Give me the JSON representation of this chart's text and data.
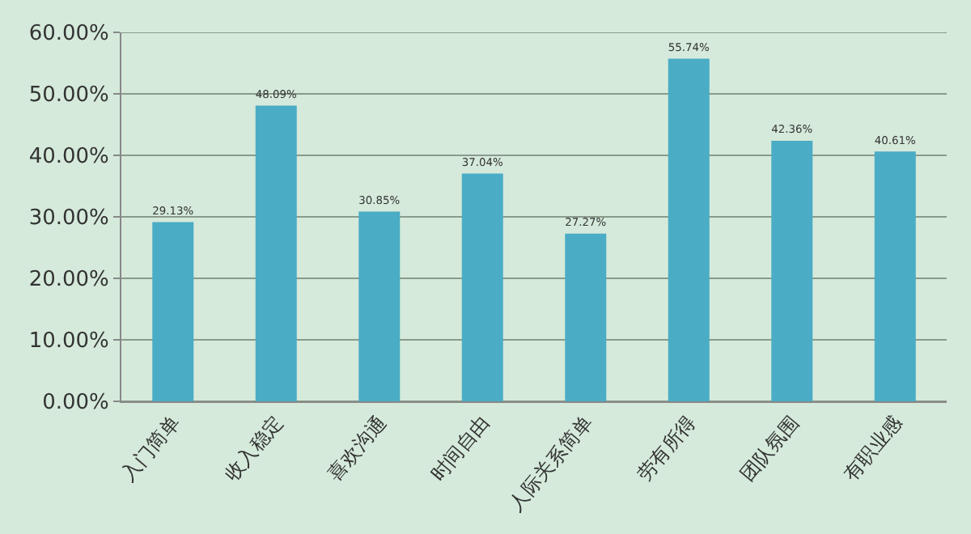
{
  "chart_data": {
    "type": "bar",
    "categories": [
      "入门简单",
      "收入稳定",
      "喜欢沟通",
      "时间自由",
      "人际关系简单",
      "劳有所得",
      "团队氛围",
      "有职业感"
    ],
    "values": [
      29.13,
      48.09,
      30.85,
      37.04,
      27.27,
      55.74,
      42.36,
      40.61
    ],
    "value_labels": [
      "29.13%",
      "48.09%",
      "30.85%",
      "37.04%",
      "27.27%",
      "55.74%",
      "42.36%",
      "40.61%"
    ],
    "color": "#4bacc6",
    "ylim": [
      0,
      60
    ],
    "yticks": [
      {
        "value": 0,
        "label": "0.00%"
      },
      {
        "value": 10,
        "label": "10.00%"
      },
      {
        "value": 20,
        "label": "20.00%"
      },
      {
        "value": 30,
        "label": "30.00%"
      },
      {
        "value": 40,
        "label": "40.00%"
      },
      {
        "value": 50,
        "label": "50.00%"
      },
      {
        "value": 60,
        "label": "60.00%"
      }
    ],
    "grid": "y"
  }
}
